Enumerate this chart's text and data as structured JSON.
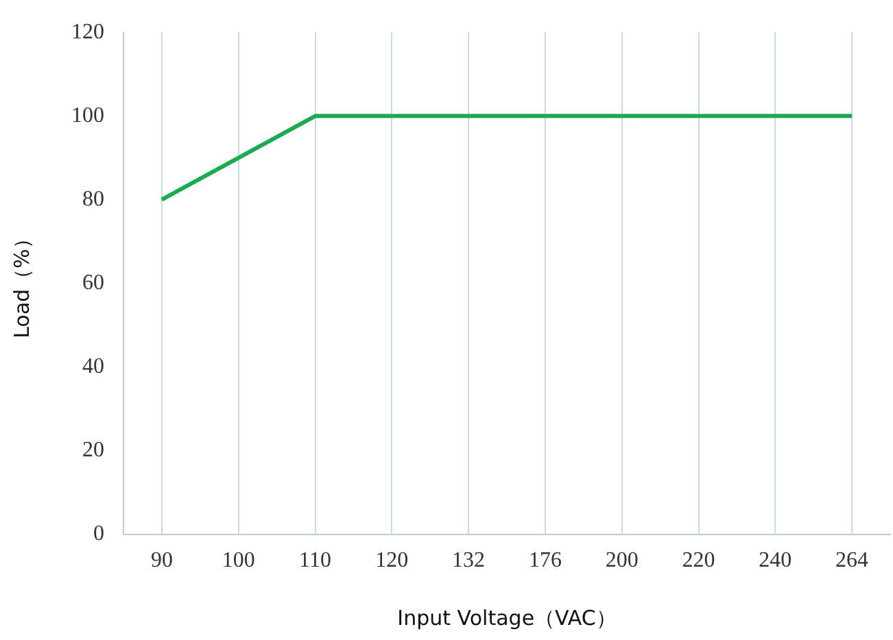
{
  "chart_data": {
    "type": "line",
    "xlabel": "Input Voltage（VAC）",
    "ylabel": "Load（%）",
    "categories": [
      "90",
      "100",
      "110",
      "120",
      "132",
      "176",
      "200",
      "220",
      "240",
      "264"
    ],
    "series": [
      {
        "color": "#1aab4f",
        "values": [
          80,
          90,
          100,
          100,
          100,
          100,
          100,
          100,
          100,
          100
        ]
      }
    ],
    "ylim": [
      0,
      120
    ],
    "yticks": [
      0,
      20,
      40,
      60,
      80,
      100,
      120
    ],
    "grid": "x",
    "legend": false,
    "marker": "none",
    "line_style": "solid"
  }
}
